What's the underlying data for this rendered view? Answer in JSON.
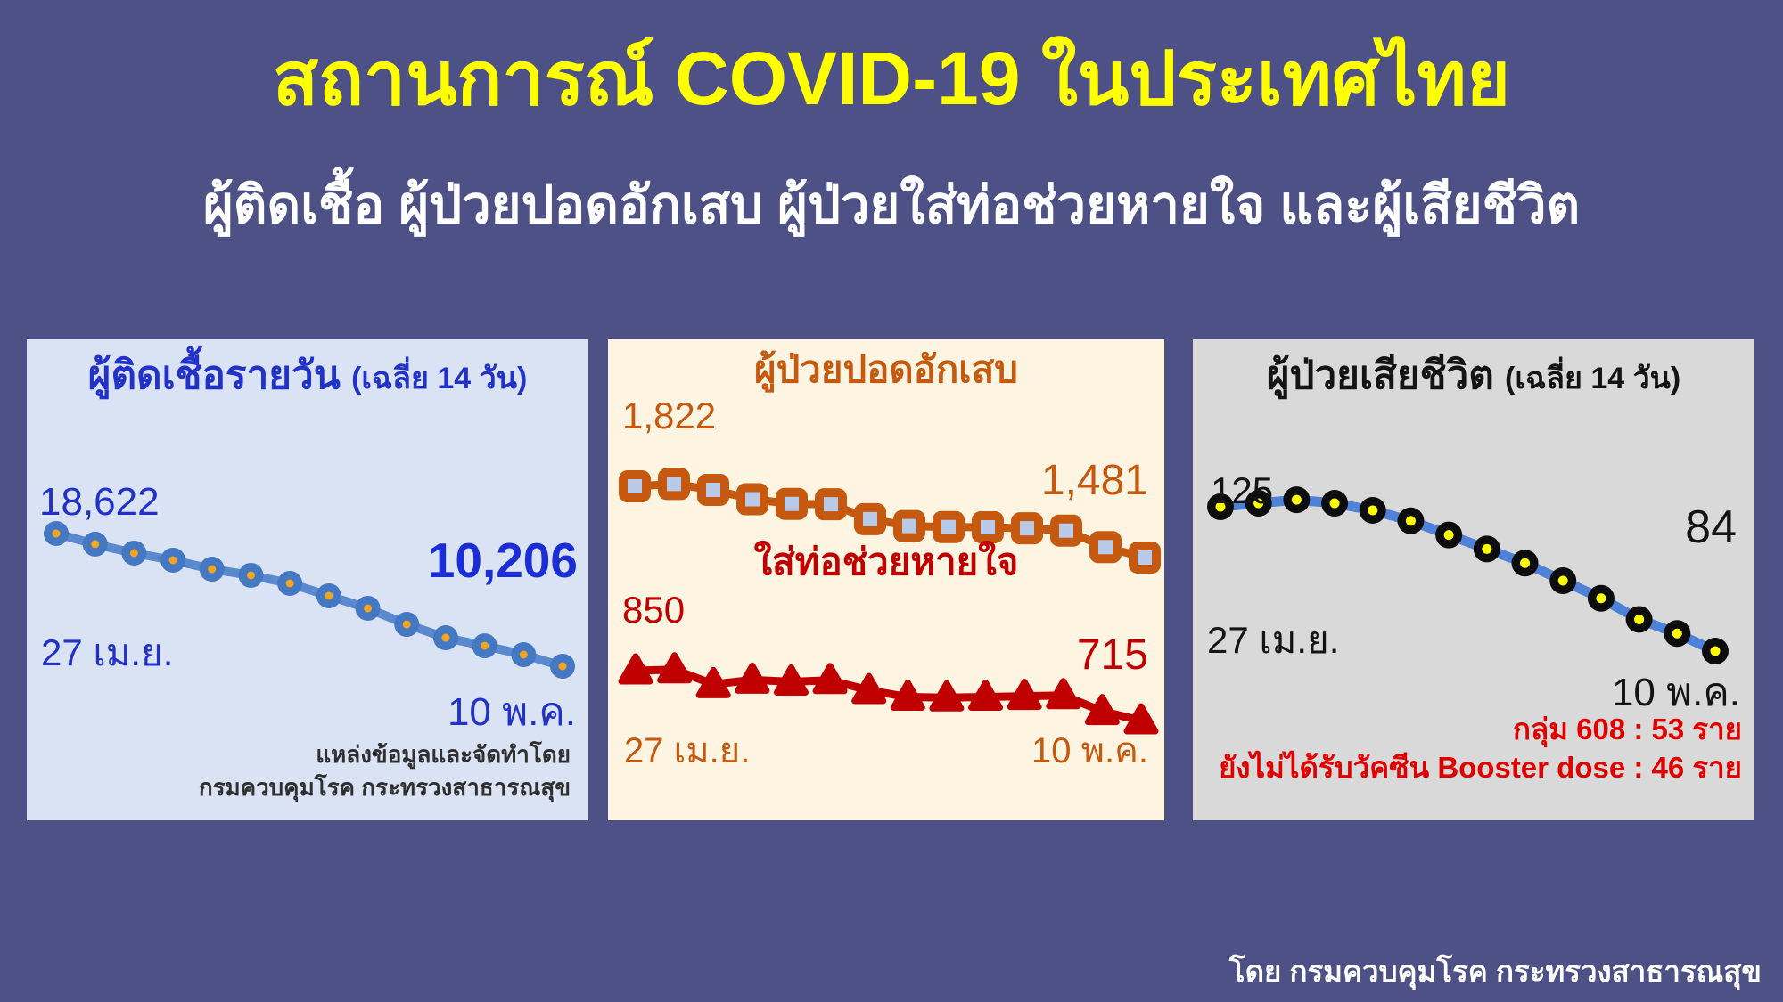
{
  "header": {
    "title": "สถานการณ์ COVID-19 ในประเทศไทย",
    "subtitle": "ผู้ติดเชื้อ ผู้ป่วยปอดอักเสบ ผู้ป่วยใส่ท่อช่วยหายใจ และผู้เสียชีวิต"
  },
  "footer": {
    "credit": "โดย กรมควบคุมโรค กระทรวงสาธารณสุข"
  },
  "colors": {
    "background": "#4d5186",
    "title_yellow": "#ffff00",
    "infections_panel_bg": "#d9e3f4",
    "respiratory_panel_bg": "#fdf5e2",
    "deaths_panel_bg": "#d9d9d9",
    "infections_blue": "#2231c7",
    "infections_line": "#5b89ce",
    "infections_marker_center": "#f2a51e",
    "pneumonia_orange": "#c5590f",
    "pneumonia_marker_fill": "#b9c9e8",
    "intubated_red": "#c00000",
    "deaths_line": "#4d82d8",
    "deaths_marker_center": "#ffff00",
    "deaths_note_red": "#e00000"
  },
  "panels": {
    "infections": {
      "title": "ผู้ติดเชื้อรายวัน",
      "title_suffix": "(เฉลี่ย 14 วัน)",
      "start_value": "18,622",
      "end_value": "10,206",
      "start_date": "27 เม.ย.",
      "end_date": "10 พ.ค.",
      "source_line1": "แหล่งข้อมูลและจัดทำโดย",
      "source_line2": "กรมควบคุมโรค กระทรวงสาธารณสุข"
    },
    "respiratory": {
      "pneumonia_title": "ผู้ป่วยปอดอักเสบ",
      "pneumonia_start": "1,822",
      "pneumonia_end": "1,481",
      "intubated_title": "ใส่ท่อช่วยหายใจ",
      "intubated_start": "850",
      "intubated_end": "715",
      "start_date": "27 เม.ย.",
      "end_date": "10 พ.ค."
    },
    "deaths": {
      "title": "ผู้ป่วยเสียชีวิต",
      "title_suffix": "(เฉลี่ย 14 วัน)",
      "start_value": "125",
      "end_value": "84",
      "start_date": "27 เม.ย.",
      "end_date": "10 พ.ค.",
      "note1": "กลุ่ม 608 : 53 ราย",
      "note2": "ยังไม่ได้รับวัคซีน Booster dose : 46 ราย"
    }
  },
  "chart_data": [
    {
      "id": "daily_infections_14day_avg",
      "type": "line",
      "title": "ผู้ติดเชื้อรายวัน (เฉลี่ย 14 วัน)",
      "x_labels": [
        "27 เม.ย.",
        "10 พ.ค."
      ],
      "n_points": 14,
      "values": [
        18622,
        17950,
        17380,
        16930,
        16360,
        15970,
        15460,
        14670,
        13880,
        12860,
        12010,
        11500,
        10940,
        10206
      ],
      "first_point_label": "18,622",
      "last_point_label": "10,206",
      "ylim": [
        10000,
        19000
      ],
      "grid": false,
      "legend": false,
      "line_color": "#5b89ce",
      "marker": "blue-circle-orange-center"
    },
    {
      "id": "pneumonia_and_intubated",
      "type": "line",
      "x_labels": [
        "27 เม.ย.",
        "10 พ.ค."
      ],
      "n_points": 14,
      "grid": false,
      "legend": false,
      "series": [
        {
          "name": "ผู้ป่วยปอดอักเสบ",
          "values": [
            1822,
            1833,
            1805,
            1760,
            1738,
            1736,
            1665,
            1632,
            1627,
            1626,
            1621,
            1610,
            1531,
            1481
          ],
          "first_point_label": "1,822",
          "last_point_label": "1,481",
          "color": "#c5590f",
          "marker": "orange-square-lightblue-fill"
        },
        {
          "name": "ใส่ท่อช่วยหายใจ",
          "values": [
            850,
            853,
            813,
            825,
            820,
            824,
            797,
            779,
            777,
            779,
            781,
            783,
            740,
            715
          ],
          "first_point_label": "850",
          "last_point_label": "715",
          "color": "#c00000",
          "marker": "red-triangle"
        }
      ]
    },
    {
      "id": "deaths_14day_avg",
      "type": "line",
      "title": "ผู้ป่วยเสียชีวิต (เฉลี่ย 14 วัน)",
      "x_labels": [
        "27 เม.ย.",
        "10 พ.ค."
      ],
      "n_points": 14,
      "values": [
        125,
        126,
        127,
        126,
        124,
        121,
        117,
        113,
        109,
        104,
        99,
        93,
        89,
        84
      ],
      "first_point_label": "125",
      "last_point_label": "84",
      "ylim": [
        80,
        130
      ],
      "grid": false,
      "legend": false,
      "line_color": "#4d82d8",
      "marker": "black-circle-yellow-center",
      "annotations": [
        "กลุ่ม 608 : 53 ราย",
        "ยังไม่ได้รับวัคซีน Booster dose : 46 ราย"
      ]
    }
  ]
}
